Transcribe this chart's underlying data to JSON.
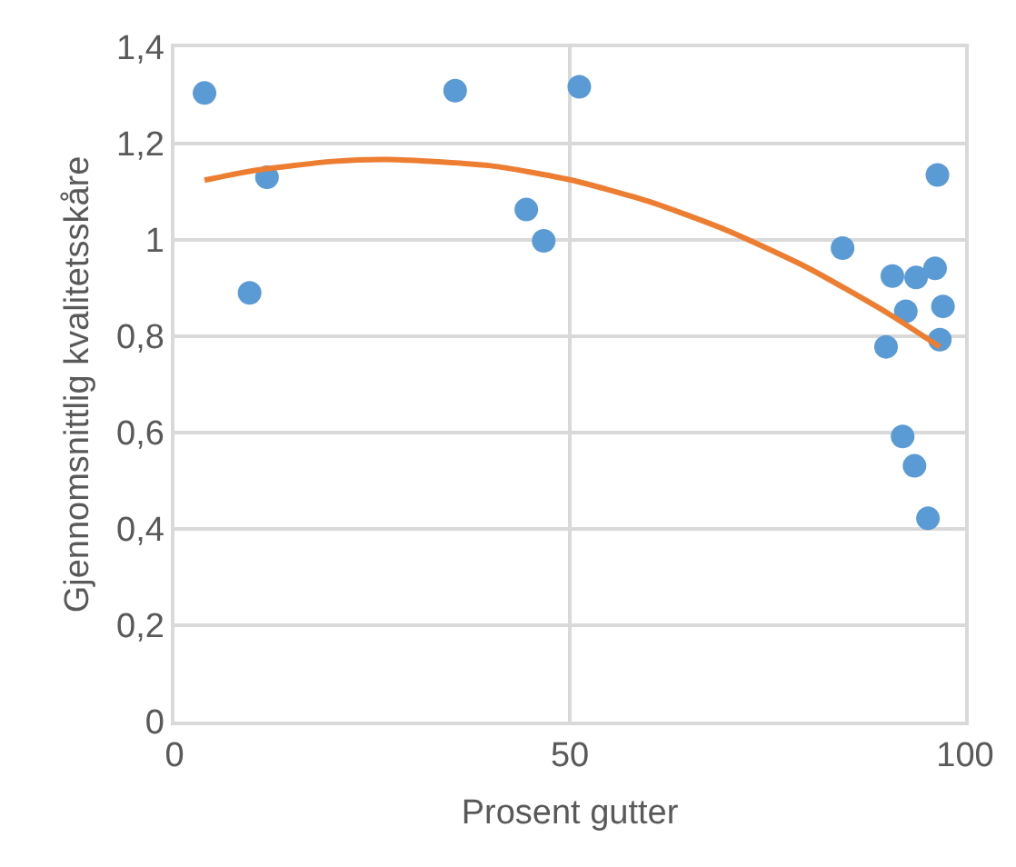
{
  "chart_data": {
    "type": "scatter",
    "xlabel": "Prosent gutter",
    "ylabel": "Gjennomsnittlig kvalitetsskåre",
    "xlim": [
      0,
      100
    ],
    "xticks": [
      0,
      50,
      100
    ],
    "ylim": [
      0,
      1.4
    ],
    "yticks": [
      0,
      {
        "value": 0.2,
        "label": "0,2"
      },
      {
        "value": 0.4,
        "label": "0,4"
      },
      {
        "value": 0.6,
        "label": "0,6"
      },
      {
        "value": 0.8,
        "label": "0,8"
      },
      1,
      {
        "value": 1.2,
        "label": "1,2"
      },
      {
        "value": 1.4,
        "label": "1,4"
      }
    ],
    "grid": true,
    "series": [
      {
        "marker": "circle",
        "color": "#5b9bd5",
        "x": [
          3.8,
          9.5,
          11.7,
          35.5,
          51.2,
          44.5,
          46.7,
          84.5,
          90.8,
          93.8,
          96.2,
          96.5,
          92.5,
          97.2,
          90,
          96.8,
          92.1,
          93.6,
          95.3
        ],
        "values": [
          1.305,
          0.89,
          1.13,
          1.31,
          1.318,
          1.063,
          0.998,
          0.983,
          0.925,
          0.922,
          0.941,
          1.135,
          0.852,
          0.862,
          0.778,
          0.793,
          0.592,
          0.531,
          0.422
        ]
      },
      {
        "type": "line",
        "marker": "none",
        "line_style": "solid",
        "color": "#ed7d31",
        "x": [
          3.8,
          10,
          20,
          27,
          40,
          50,
          60,
          70,
          80,
          90,
          96.8
        ],
        "values": [
          1.124,
          1.144,
          1.163,
          1.167,
          1.154,
          1.125,
          1.08,
          1.019,
          0.943,
          0.85,
          0.778
        ]
      }
    ]
  }
}
